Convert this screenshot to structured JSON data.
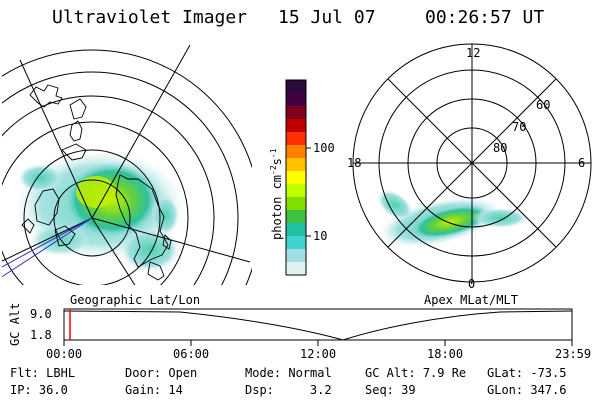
{
  "header": {
    "instrument": "Ultraviolet Imager",
    "date": "15 Jul 07",
    "time": "00:26:57 UT"
  },
  "colorbar": {
    "unit_main": "photon cm",
    "unit_sup1": "-2",
    "unit_mid": "s",
    "unit_sup2": "-1",
    "tick_high": "100",
    "tick_low": "10",
    "colors": [
      "#2a0a3a",
      "#400040",
      "#800020",
      "#c00000",
      "#ff3000",
      "#ff8000",
      "#ffc000",
      "#ffff00",
      "#c0ff00",
      "#80e000",
      "#40c040",
      "#20c0a0",
      "#40d0d0",
      "#a0e0e0",
      "#e0f0f0"
    ]
  },
  "left_panel": {
    "label": "Geographic Lat/Lon"
  },
  "right_panel": {
    "label": "Apex MLat/MLT",
    "mlt_top": "12",
    "mlt_left": "18",
    "mlt_right": "6",
    "mlt_bottom": "0",
    "lat_60": "60",
    "lat_70": "70",
    "lat_80": "80"
  },
  "altitude_plot": {
    "ylabel": "GC Alt",
    "tick_high": "9.0",
    "tick_low": "1.8",
    "x_ticks": [
      "00:00",
      "06:00",
      "12:00",
      "18:00",
      "23:59"
    ],
    "marker_color": "#ff0000"
  },
  "info": {
    "flt_label": "Flt:",
    "flt_value": "LBHL",
    "ip_label": "IP:",
    "ip_value": "36.0",
    "door_label": "Door:",
    "door_value": "Open",
    "gain_label": "Gain:",
    "gain_value": "14",
    "mode_label": "Mode:",
    "mode_value": "Normal",
    "dsp_label": "Dsp:",
    "dsp_value": "3.2",
    "gcalt_label": "GC Alt:",
    "gcalt_value": "7.9 Re",
    "seq_label": "Seq:",
    "seq_value": "39",
    "glat_label": "GLat:",
    "glat_value": "-73.5",
    "glon_label": "GLon:",
    "glon_value": "347.6"
  }
}
